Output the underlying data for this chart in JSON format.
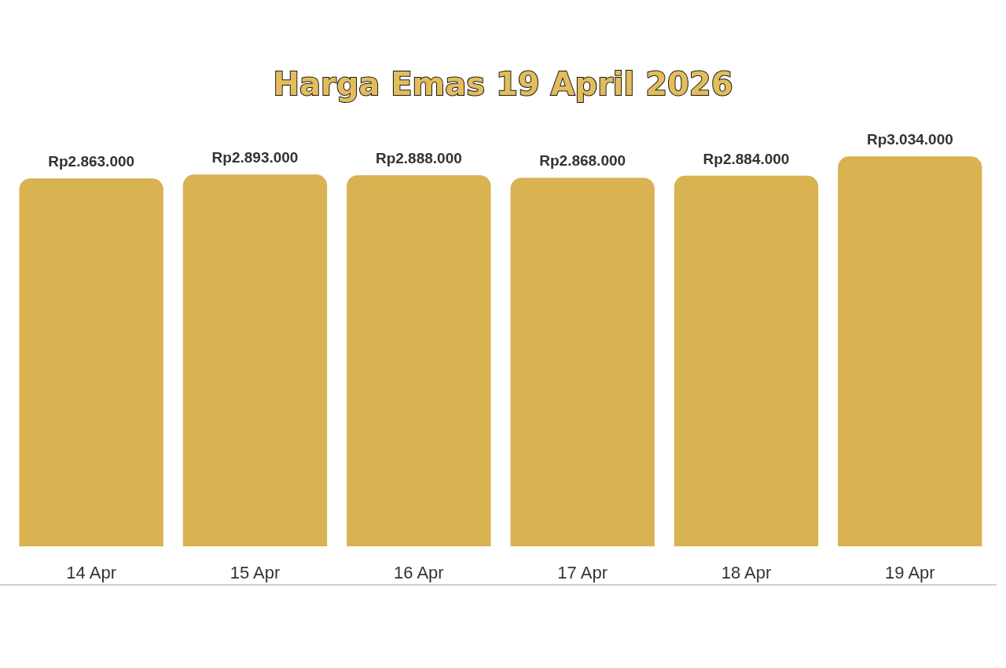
{
  "chart_data": {
    "type": "bar",
    "title": "Harga Emas 19 April 2026",
    "categories": [
      "14 Apr",
      "15 Apr",
      "16 Apr",
      "17 Apr",
      "18 Apr",
      "19 Apr"
    ],
    "values": [
      2863000,
      2893000,
      2888000,
      2868000,
      2884000,
      3034000
    ],
    "value_labels": [
      "Rp2.863.000",
      "Rp2.893.000",
      "Rp2.888.000",
      "Rp2.868.000",
      "Rp2.884.000",
      "Rp3.034.000"
    ],
    "color": "#d9b251"
  }
}
